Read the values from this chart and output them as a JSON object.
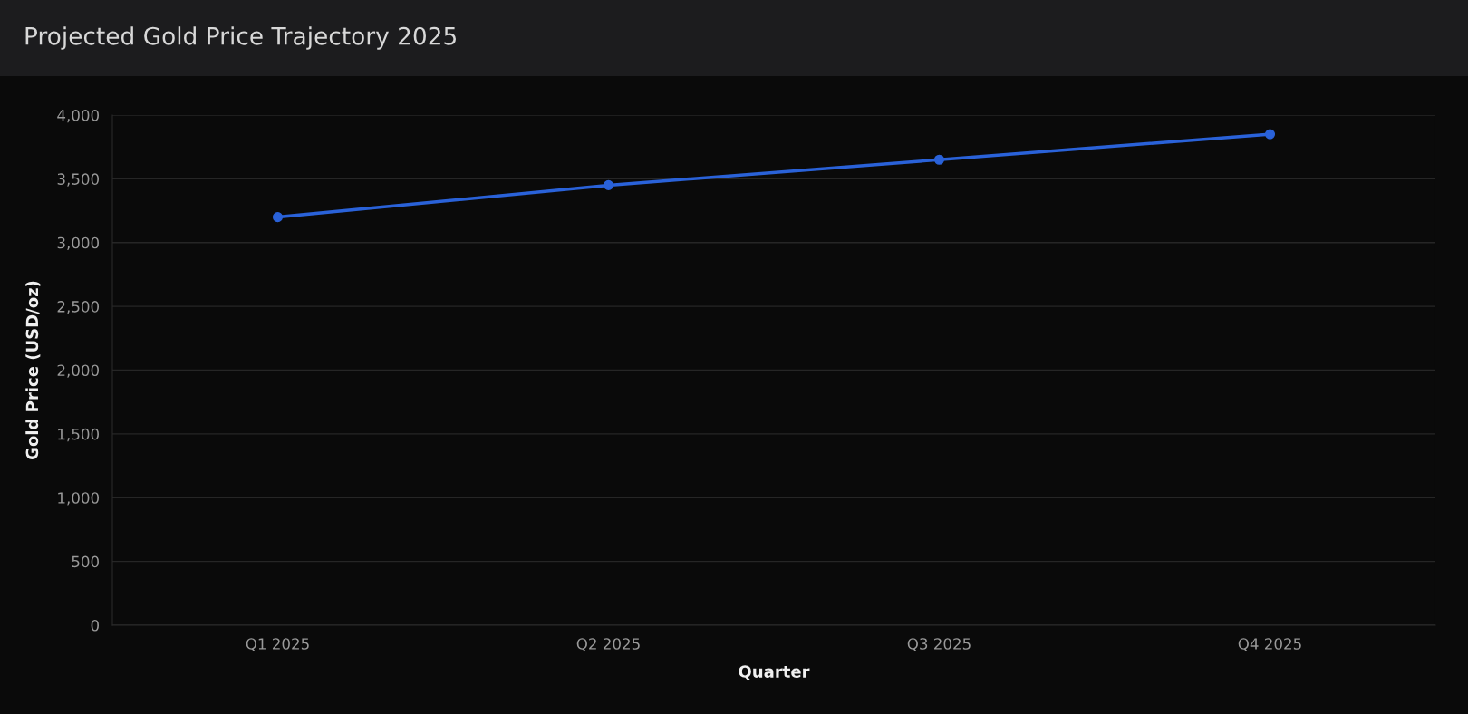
{
  "chart_data": {
    "type": "line",
    "title": "Projected Gold Price Trajectory 2025",
    "xlabel": "Quarter",
    "ylabel": "Gold Price (USD/oz)",
    "categories": [
      "Q1 2025",
      "Q2 2025",
      "Q3 2025",
      "Q4 2025"
    ],
    "series": [
      {
        "color": "#2a62d9",
        "values": [
          3200,
          3450,
          3650,
          3850
        ]
      }
    ],
    "ylim": [
      0,
      4000
    ],
    "yticks": [
      {
        "value": 0,
        "label": "0"
      },
      {
        "value": 500,
        "label": "500"
      },
      {
        "value": 1000,
        "label": "1,000"
      },
      {
        "value": 1500,
        "label": "1,500"
      },
      {
        "value": 2000,
        "label": "2,000"
      },
      {
        "value": 2500,
        "label": "2,500"
      },
      {
        "value": 3000,
        "label": "3,000"
      },
      {
        "value": 3500,
        "label": "3,500"
      },
      {
        "value": 4000,
        "label": "4,000"
      }
    ],
    "grid": "y",
    "marker": "circle",
    "line_style": "solid",
    "legend": false
  }
}
